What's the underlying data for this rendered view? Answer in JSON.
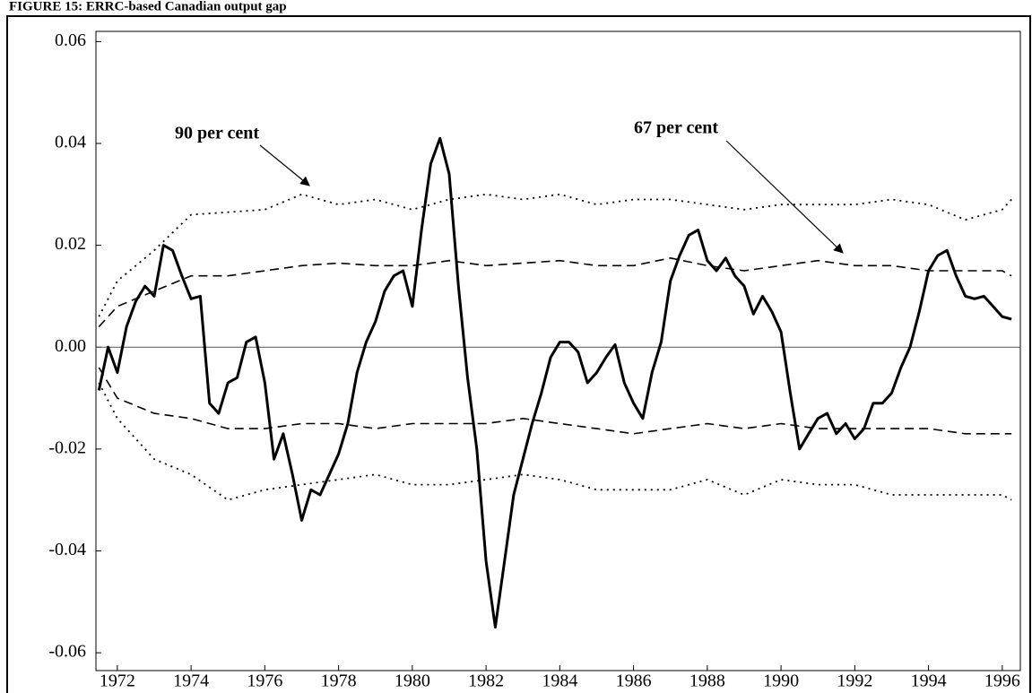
{
  "chart_data": {
    "type": "line",
    "title": "FIGURE 15: ERRC-based Canadian output gap",
    "xlim": [
      1971.42,
      1996.49
    ],
    "xticks": [
      1972,
      1974,
      1976,
      1978,
      1980,
      1982,
      1984,
      1986,
      1988,
      1990,
      1992,
      1994,
      1996
    ],
    "ylim": [
      -0.0635,
      0.062
    ],
    "yticks": [
      0.06,
      0.04,
      0.02,
      {
        "value": 0,
        "label": "0.00"
      },
      -0.02,
      -0.04,
      -0.06
    ],
    "annotations": [
      {
        "text": "90 per cent"
      },
      {
        "text": "67 per cent"
      }
    ],
    "series": [
      {
        "color": "#000000",
        "dash": "solid",
        "x": [
          1971.5,
          1971.75,
          1972,
          1972.25,
          1972.5,
          1972.75,
          1973,
          1973.25,
          1973.5,
          1973.75,
          1974,
          1974.25,
          1974.5,
          1974.75,
          1975,
          1975.25,
          1975.5,
          1975.75,
          1976,
          1976.25,
          1976.5,
          1976.75,
          1977,
          1977.25,
          1977.5,
          1977.75,
          1978,
          1978.25,
          1978.5,
          1978.75,
          1979,
          1979.25,
          1979.5,
          1979.75,
          1980,
          1980.25,
          1980.5,
          1980.75,
          1981,
          1981.25,
          1981.5,
          1981.75,
          1982,
          1982.25,
          1982.5,
          1982.75,
          1983,
          1983.25,
          1983.5,
          1983.75,
          1984,
          1984.25,
          1984.5,
          1984.75,
          1985,
          1985.25,
          1985.5,
          1985.75,
          1986,
          1986.25,
          1986.5,
          1986.75,
          1987,
          1987.25,
          1987.5,
          1987.75,
          1988,
          1988.25,
          1988.5,
          1988.75,
          1989,
          1989.25,
          1989.5,
          1989.75,
          1990,
          1990.25,
          1990.5,
          1990.75,
          1991,
          1991.25,
          1991.5,
          1991.75,
          1992,
          1992.25,
          1992.5,
          1992.75,
          1993,
          1993.25,
          1993.5,
          1993.75,
          1994,
          1994.25,
          1994.5,
          1994.75,
          1995,
          1995.25,
          1995.5,
          1995.75,
          1996,
          1996.25
        ],
        "values": [
          -0.0085,
          0.0,
          -0.005,
          0.004,
          0.009,
          0.012,
          0.01,
          0.02,
          0.019,
          0.014,
          0.0095,
          0.01,
          -0.011,
          -0.013,
          -0.007,
          -0.006,
          0.001,
          0.002,
          -0.007,
          -0.022,
          -0.017,
          -0.025,
          -0.034,
          -0.028,
          -0.029,
          -0.025,
          -0.021,
          -0.015,
          -0.005,
          0.001,
          0.005,
          0.011,
          0.014,
          0.015,
          0.008,
          0.023,
          0.036,
          0.041,
          0.034,
          0.012,
          -0.006,
          -0.02,
          -0.042,
          -0.055,
          -0.042,
          -0.029,
          -0.022,
          -0.015,
          -0.009,
          -0.002,
          0.001,
          0.001,
          -0.001,
          -0.007,
          -0.005,
          -0.002,
          0.0005,
          -0.007,
          -0.011,
          -0.014,
          -0.005,
          0.001,
          0.013,
          0.018,
          0.022,
          0.023,
          0.017,
          0.015,
          0.0175,
          0.014,
          0.012,
          0.0065,
          0.01,
          0.007,
          0.003,
          -0.009,
          -0.02,
          -0.017,
          -0.014,
          -0.013,
          -0.017,
          -0.015,
          -0.018,
          -0.016,
          -0.011,
          -0.011,
          -0.009,
          -0.004,
          0.0,
          0.007,
          0.015,
          0.018,
          0.019,
          0.014,
          0.01,
          0.0095,
          0.01,
          0.008,
          0.006,
          0.0055
        ]
      },
      {
        "color": "#000000",
        "dash": "dotted",
        "x": [
          1971.5,
          1972,
          1973,
          1974,
          1975,
          1976,
          1977,
          1978,
          1979,
          1980,
          1981,
          1982,
          1983,
          1984,
          1985,
          1986,
          1987,
          1988,
          1989,
          1990,
          1991,
          1992,
          1993,
          1994,
          1995,
          1996,
          1996.25
        ],
        "values": [
          0.006,
          0.013,
          0.019,
          0.026,
          0.0265,
          0.027,
          0.03,
          0.028,
          0.029,
          0.027,
          0.029,
          0.03,
          0.029,
          0.03,
          0.028,
          0.029,
          0.029,
          0.028,
          0.027,
          0.028,
          0.028,
          0.028,
          0.029,
          0.028,
          0.025,
          0.027,
          0.029
        ]
      },
      {
        "color": "#000000",
        "dash": "dashed",
        "x": [
          1971.5,
          1972,
          1973,
          1974,
          1975,
          1976,
          1977,
          1978,
          1979,
          1980,
          1981,
          1982,
          1983,
          1984,
          1985,
          1986,
          1987,
          1988,
          1989,
          1990,
          1991,
          1992,
          1993,
          1994,
          1995,
          1996,
          1996.25
        ],
        "values": [
          0.004,
          0.008,
          0.011,
          0.014,
          0.014,
          0.015,
          0.016,
          0.0165,
          0.016,
          0.016,
          0.017,
          0.016,
          0.0165,
          0.017,
          0.016,
          0.016,
          0.0175,
          0.016,
          0.015,
          0.016,
          0.017,
          0.016,
          0.016,
          0.015,
          0.015,
          0.015,
          0.014
        ]
      },
      {
        "color": "#000000",
        "dash": "dashed",
        "x": [
          1971.5,
          1972,
          1973,
          1974,
          1975,
          1976,
          1977,
          1978,
          1979,
          1980,
          1981,
          1982,
          1983,
          1984,
          1985,
          1986,
          1987,
          1988,
          1989,
          1990,
          1991,
          1992,
          1993,
          1994,
          1995,
          1996,
          1996.25
        ],
        "values": [
          -0.004,
          -0.01,
          -0.013,
          -0.014,
          -0.016,
          -0.016,
          -0.015,
          -0.015,
          -0.016,
          -0.015,
          -0.015,
          -0.015,
          -0.014,
          -0.015,
          -0.016,
          -0.017,
          -0.016,
          -0.015,
          -0.016,
          -0.015,
          -0.016,
          -0.016,
          -0.016,
          -0.016,
          -0.017,
          -0.017,
          -0.017
        ]
      },
      {
        "color": "#000000",
        "dash": "dotted",
        "x": [
          1971.5,
          1972,
          1973,
          1974,
          1975,
          1976,
          1977,
          1978,
          1979,
          1980,
          1981,
          1982,
          1983,
          1984,
          1985,
          1986,
          1987,
          1988,
          1989,
          1990,
          1991,
          1992,
          1993,
          1994,
          1995,
          1996,
          1996.25
        ],
        "values": [
          -0.007,
          -0.014,
          -0.022,
          -0.025,
          -0.03,
          -0.028,
          -0.027,
          -0.026,
          -0.025,
          -0.027,
          -0.027,
          -0.026,
          -0.025,
          -0.026,
          -0.028,
          -0.028,
          -0.028,
          -0.026,
          -0.029,
          -0.026,
          -0.027,
          -0.027,
          -0.029,
          -0.029,
          -0.029,
          -0.029,
          -0.03
        ]
      }
    ]
  }
}
